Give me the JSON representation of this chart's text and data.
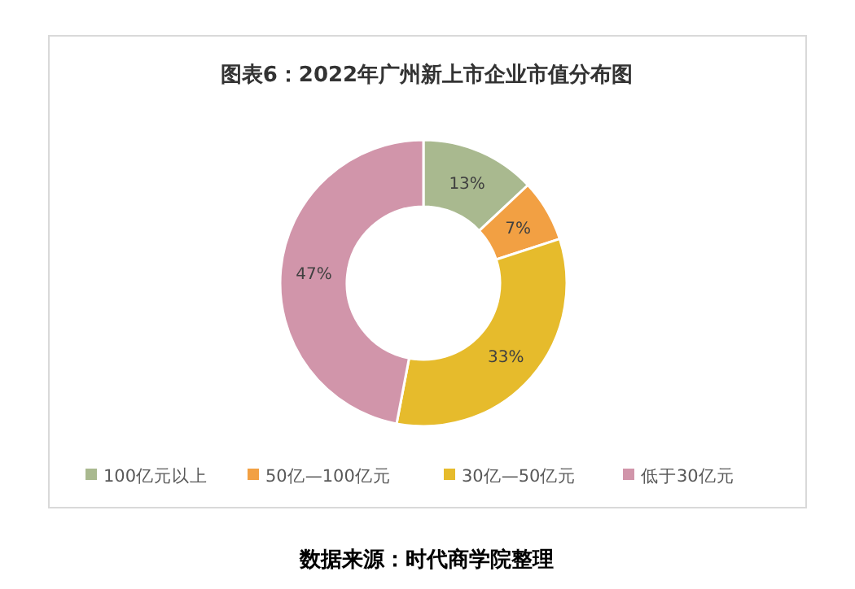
{
  "chart_data": {
    "type": "donut",
    "title": "图表6：2022年广州新上市企业市值分布图",
    "categories": [
      "100亿元以上",
      "50亿—100亿元",
      "30亿—50亿元",
      "低于30亿元"
    ],
    "values": [
      13,
      7,
      33,
      47
    ],
    "value_labels": [
      "13%",
      "7%",
      "33%",
      "47%"
    ],
    "colors": [
      "#a9b98f",
      "#f2a043",
      "#e6bb2c",
      "#d195aa"
    ],
    "legend": "bottom",
    "annotations": [
      "数据来源：时代商学院整理"
    ]
  }
}
